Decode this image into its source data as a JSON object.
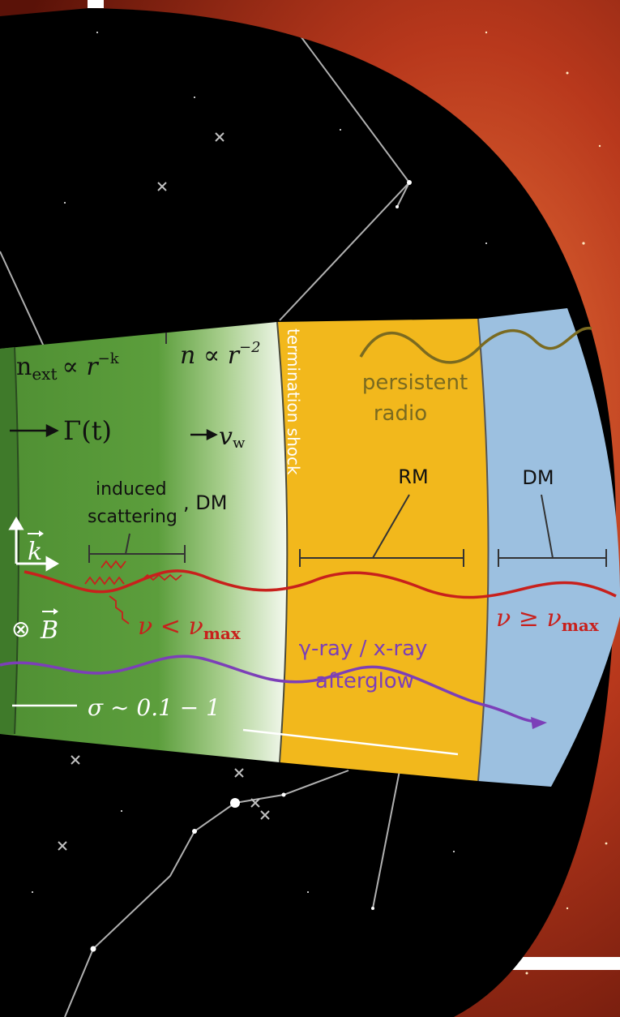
{
  "diagram": {
    "green_zone": {
      "density_external": "n",
      "density_external_sub": "ext",
      "density_external_rel": "∝ r",
      "density_external_exp": "−k",
      "density_wind": "n ∝ r",
      "density_wind_exp": "−2",
      "lorentz_factor": "Γ(t)",
      "wind_velocity": "v",
      "wind_velocity_sub": "w",
      "induced_scattering": "induced",
      "induced_scattering_2": "scattering",
      "dm_label": ", DM",
      "wave_vector": "k",
      "magnetic_field": "B",
      "frequency_condition": "ν < ν",
      "frequency_condition_sub": "max",
      "magnetization": "σ ~ 0.1 − 1"
    },
    "termination_shock": "termination shock",
    "yellow_zone": {
      "persistent_radio_1": "persistent",
      "persistent_radio_2": "radio",
      "rm_label": "RM",
      "afterglow_1": "γ-ray / x-ray",
      "afterglow_2": "afterglow"
    },
    "blue_zone": {
      "dm_label": "DM",
      "frequency_condition": "ν  ≥  ν",
      "frequency_condition_sub": "max"
    },
    "colors": {
      "green": "#5a9a3a",
      "yellow": "#f2b81c",
      "blue": "#9cc0e0",
      "red_wave": "#c8201c",
      "purple_wave": "#7c3fb8",
      "olive_wave": "#7a6a20",
      "nebula": "#b8381c",
      "sky": "#000000"
    }
  }
}
